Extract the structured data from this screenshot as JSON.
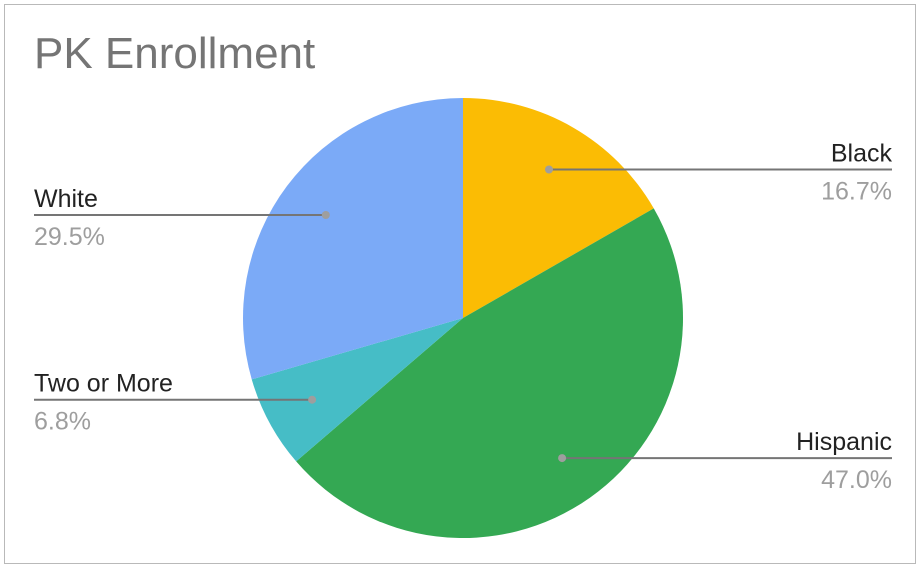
{
  "chart_data": {
    "type": "pie",
    "title": "PK Enrollment",
    "slices": [
      {
        "label": "Black",
        "percent_label": "16.7%",
        "value": 16.7,
        "color": "#fbbc04",
        "label_side": "right"
      },
      {
        "label": "Hispanic",
        "percent_label": "47.0%",
        "value": 47.0,
        "color": "#34a853",
        "label_side": "right"
      },
      {
        "label": "Two or More",
        "percent_label": "6.8%",
        "value": 6.8,
        "color": "#46bdc6",
        "label_side": "left"
      },
      {
        "label": "White",
        "percent_label": "29.5%",
        "value": 29.5,
        "color": "#7baaf7",
        "label_side": "left"
      }
    ],
    "start_angle": "12 o'clock",
    "direction": "clockwise",
    "legend": "none",
    "label_style": "callout lines with label and percentage"
  }
}
